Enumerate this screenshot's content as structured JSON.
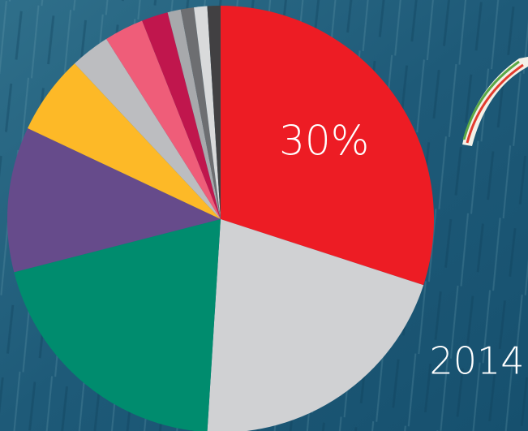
{
  "chart_data": {
    "type": "pie",
    "title": "2014",
    "values": [
      30,
      21,
      20,
      11,
      6,
      3,
      3,
      2,
      1,
      1,
      1,
      1
    ],
    "value_labels": [
      "30%",
      null,
      null,
      null,
      null,
      null,
      null,
      null,
      null,
      null,
      null,
      null
    ],
    "colors": [
      "#ed1c24",
      "#d0d1d3",
      "#008c6e",
      "#664b8b",
      "#fdb927",
      "#bcbdc0",
      "#ef5d79",
      "#c0164d",
      "#a7a9ac",
      "#6d6e71",
      "#d9dadb",
      "#414042"
    ]
  }
}
